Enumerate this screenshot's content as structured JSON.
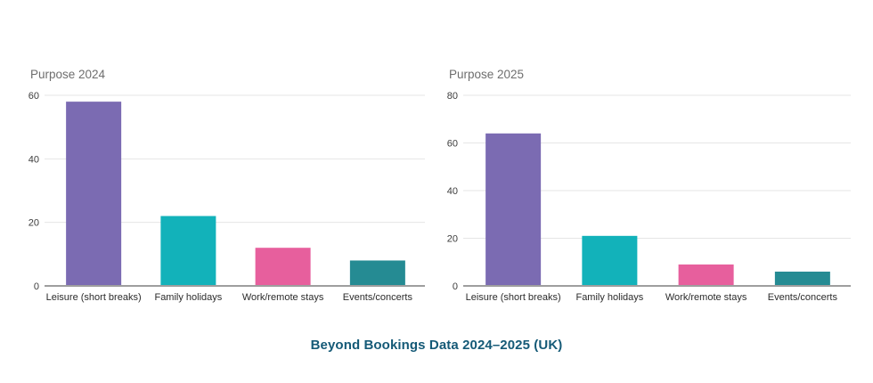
{
  "page": {
    "caption": "Beyond Bookings Data 2024–2025 (UK)",
    "caption_color": "#155a77",
    "background_color": "#ffffff"
  },
  "theme": {
    "grid_color": "#e6e6e6",
    "baseline_color": "#9e9e9e",
    "tick_label_color": "#3d3d3d",
    "category_label_color": "#2b2b2b",
    "title_color": "#6e6e6e"
  },
  "chart_data": [
    {
      "type": "bar",
      "title": "Purpose 2024",
      "categories": [
        "Leisure (short breaks)",
        "Family holidays",
        "Work/remote stays",
        "Events/concerts"
      ],
      "values": [
        58,
        22,
        12,
        8
      ],
      "bar_colors": [
        "#7b6bb2",
        "#12b2ba",
        "#e75f9d",
        "#258b93"
      ],
      "xlabel": "",
      "ylabel": "",
      "ylim": [
        0,
        60
      ],
      "yticks": [
        0,
        20,
        40,
        60
      ],
      "grid": true,
      "legend": "none"
    },
    {
      "type": "bar",
      "title": "Purpose 2025",
      "categories": [
        "Leisure (short breaks)",
        "Family holidays",
        "Work/remote stays",
        "Events/concerts"
      ],
      "values": [
        64,
        21,
        9,
        6
      ],
      "bar_colors": [
        "#7b6bb2",
        "#12b2ba",
        "#e75f9d",
        "#258b93"
      ],
      "xlabel": "",
      "ylabel": "",
      "ylim": [
        0,
        80
      ],
      "yticks": [
        0,
        20,
        40,
        60,
        80
      ],
      "grid": true,
      "legend": "none"
    }
  ]
}
